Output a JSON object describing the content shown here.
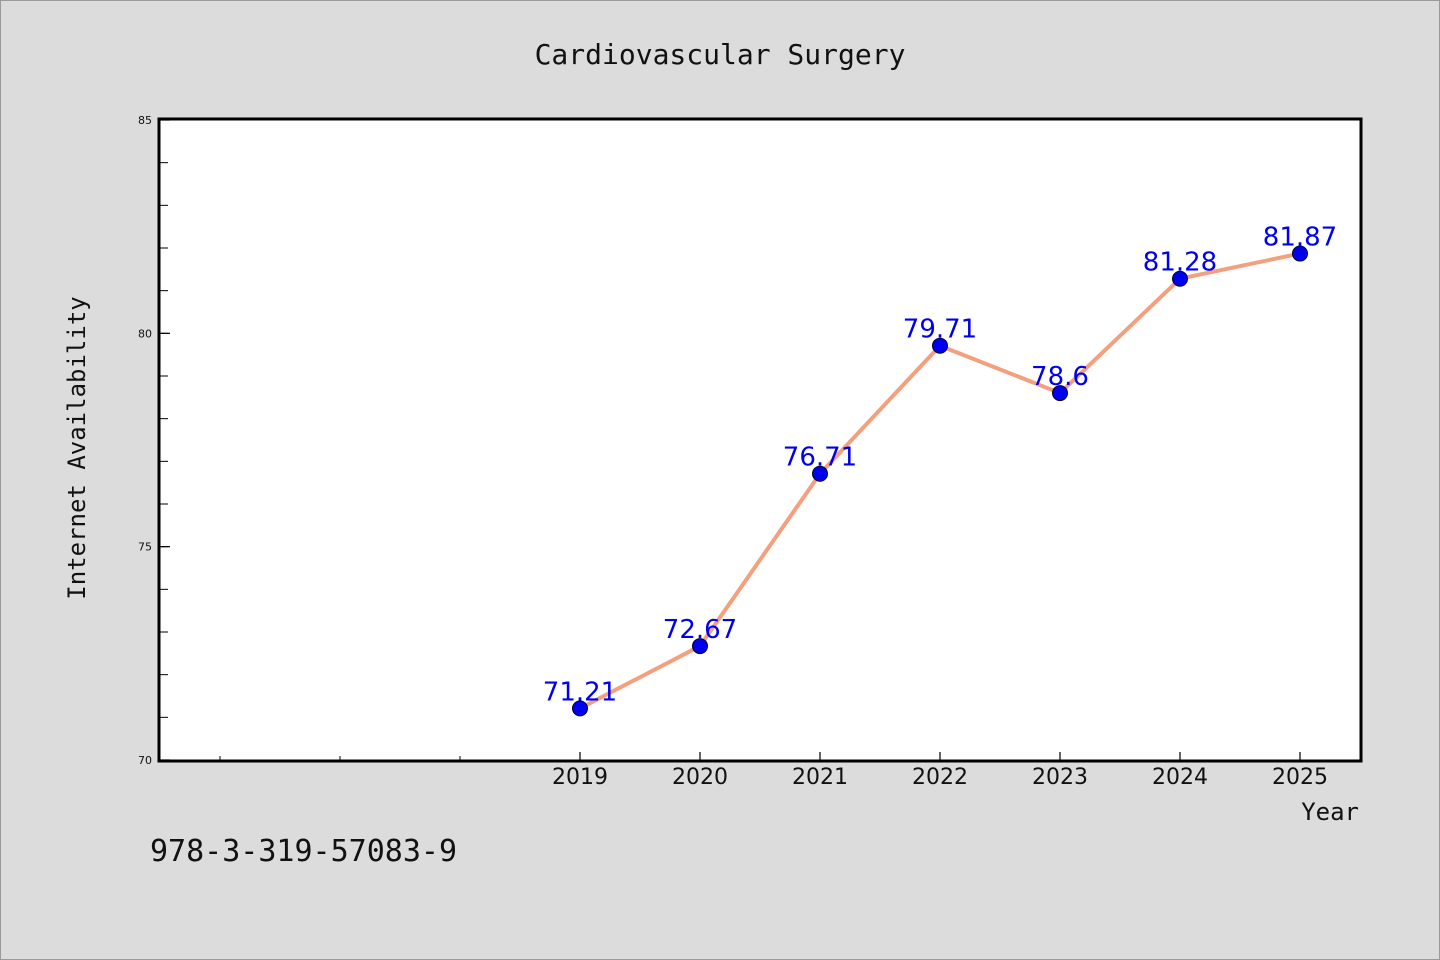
{
  "chart_data": {
    "type": "line",
    "title": "Cardiovascular Surgery",
    "xlabel": "Year",
    "ylabel": "Internet Availability",
    "x": [
      2019,
      2020,
      2021,
      2022,
      2023,
      2024,
      2025
    ],
    "x_tick_labels": [
      "2019",
      "2020",
      "2021",
      "2022",
      "2023",
      "2024",
      "2025"
    ],
    "xlim": [
      2015.5,
      2025.5
    ],
    "ylim": [
      70,
      85
    ],
    "y_ticks": [
      70,
      75,
      80,
      85
    ],
    "series": [
      {
        "values": [
          71.21,
          72.67,
          76.71,
          79.71,
          78.6,
          81.28,
          81.87
        ],
        "data_labels": [
          "71.21",
          "72.67",
          "76.71",
          "79.71",
          "78.6",
          "81.28",
          "81.87"
        ],
        "line_color": "#f4a07e",
        "marker_color": "#0000ee"
      }
    ],
    "label_color": "#0000ee",
    "grid": false,
    "legend": "none"
  },
  "footer": {
    "code": "978-3-319-57083-9"
  }
}
